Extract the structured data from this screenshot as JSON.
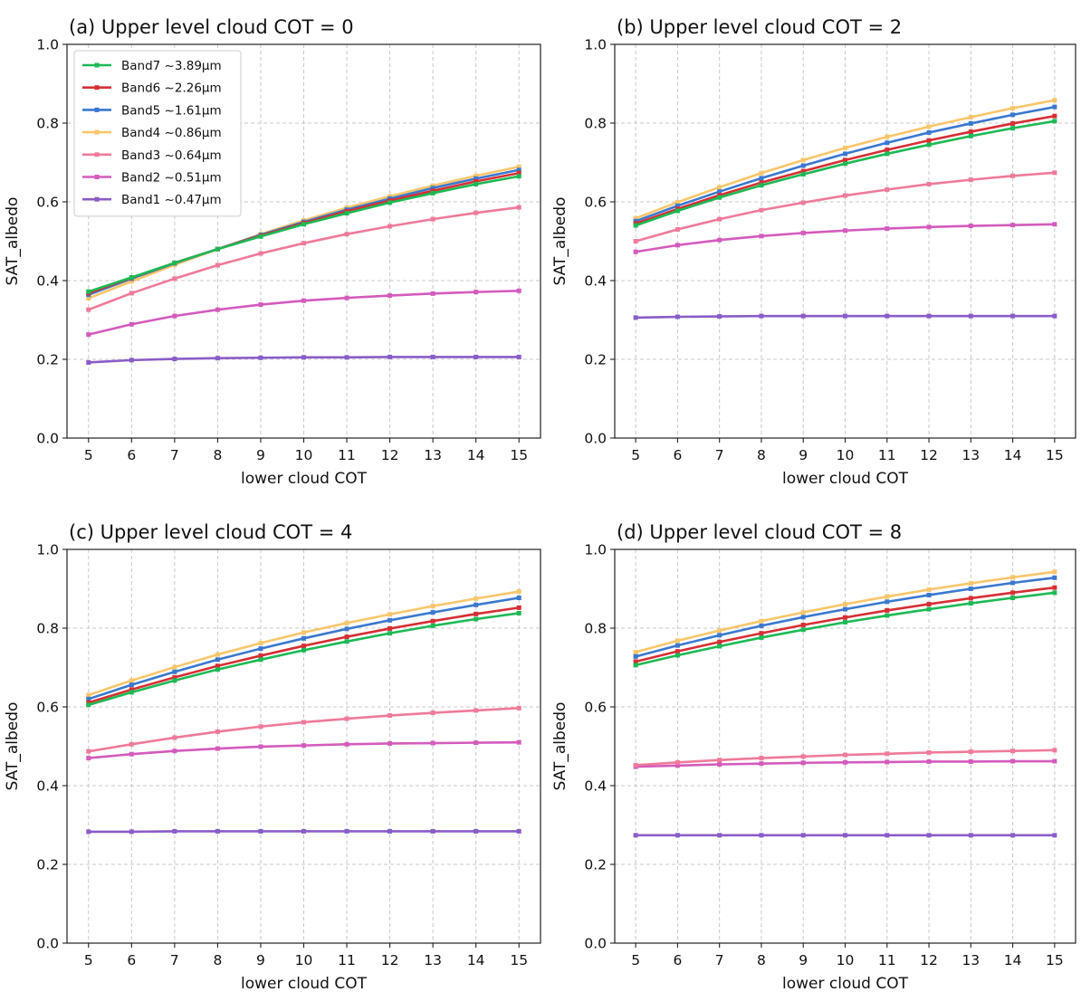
{
  "colors": {
    "band7": "#1db954",
    "band6": "#d62f34",
    "band5": "#3a78cf",
    "band4": "#f8c66a",
    "band3": "#ef7a9a",
    "band2": "#d45bbd",
    "band1": "#8a5cc8"
  },
  "chart_data": [
    {
      "type": "line",
      "title": "(a) Upper level cloud COT = 0",
      "xlabel": "lower cloud COT",
      "ylabel": "SAT_albedo",
      "ylim": [
        0.0,
        1.0
      ],
      "xlim": [
        4.5,
        15.5
      ],
      "yticks": [
        "0.0",
        "0.2",
        "0.4",
        "0.6",
        "0.8",
        "1.0"
      ],
      "xticks": [
        "5",
        "6",
        "7",
        "8",
        "9",
        "10",
        "11",
        "12",
        "13",
        "14",
        "15"
      ],
      "grid": true,
      "legend_position": "top-left",
      "x": [
        5,
        6,
        7,
        8,
        9,
        10,
        11,
        12,
        13,
        14,
        15
      ],
      "series": [
        {
          "name": "Band7 ~3.89μm",
          "color_key": "band7",
          "values": [
            0.372,
            0.408,
            0.445,
            0.48,
            0.512,
            0.543,
            0.571,
            0.598,
            0.622,
            0.645,
            0.665
          ]
        },
        {
          "name": "Band6 ~2.26μm",
          "color_key": "band6",
          "values": [
            0.368,
            0.407,
            0.445,
            0.48,
            0.514,
            0.546,
            0.576,
            0.603,
            0.628,
            0.652,
            0.673
          ]
        },
        {
          "name": "Band5 ~1.61μm",
          "color_key": "band5",
          "values": [
            0.364,
            0.405,
            0.444,
            0.48,
            0.516,
            0.549,
            0.58,
            0.608,
            0.635,
            0.659,
            0.681
          ]
        },
        {
          "name": "Band4 ~0.86μm",
          "color_key": "band4",
          "values": [
            0.355,
            0.398,
            0.44,
            0.48,
            0.518,
            0.553,
            0.585,
            0.614,
            0.641,
            0.666,
            0.689
          ]
        },
        {
          "name": "Band3 ~0.64μm",
          "color_key": "band3",
          "values": [
            0.326,
            0.368,
            0.405,
            0.439,
            0.469,
            0.495,
            0.518,
            0.538,
            0.556,
            0.572,
            0.586
          ]
        },
        {
          "name": "Band2 ~0.51μm",
          "color_key": "band2",
          "values": [
            0.263,
            0.289,
            0.31,
            0.326,
            0.339,
            0.349,
            0.356,
            0.362,
            0.367,
            0.371,
            0.374
          ]
        },
        {
          "name": "Band1 ~0.47μm",
          "color_key": "band1",
          "values": [
            0.192,
            0.198,
            0.201,
            0.203,
            0.204,
            0.205,
            0.205,
            0.206,
            0.206,
            0.206,
            0.206
          ]
        }
      ]
    },
    {
      "type": "line",
      "title": "(b) Upper level cloud COT = 2",
      "xlabel": "lower cloud COT",
      "ylabel": "SAT_albedo",
      "ylim": [
        0.0,
        1.0
      ],
      "xlim": [
        4.5,
        15.5
      ],
      "yticks": [
        "0.0",
        "0.2",
        "0.4",
        "0.6",
        "0.8",
        "1.0"
      ],
      "xticks": [
        "5",
        "6",
        "7",
        "8",
        "9",
        "10",
        "11",
        "12",
        "13",
        "14",
        "15"
      ],
      "grid": true,
      "x": [
        5,
        6,
        7,
        8,
        9,
        10,
        11,
        12,
        13,
        14,
        15
      ],
      "series": [
        {
          "name": "Band7 ~3.89μm",
          "color_key": "band7",
          "values": [
            0.54,
            0.577,
            0.611,
            0.642,
            0.67,
            0.697,
            0.722,
            0.745,
            0.767,
            0.787,
            0.805
          ]
        },
        {
          "name": "Band6 ~2.26μm",
          "color_key": "band6",
          "values": [
            0.545,
            0.582,
            0.617,
            0.649,
            0.678,
            0.706,
            0.732,
            0.756,
            0.778,
            0.799,
            0.818
          ]
        },
        {
          "name": "Band5 ~1.61μm",
          "color_key": "band5",
          "values": [
            0.551,
            0.59,
            0.626,
            0.66,
            0.692,
            0.722,
            0.75,
            0.776,
            0.799,
            0.821,
            0.841
          ]
        },
        {
          "name": "Band4 ~0.86μm",
          "color_key": "band4",
          "values": [
            0.558,
            0.599,
            0.637,
            0.673,
            0.706,
            0.737,
            0.765,
            0.791,
            0.815,
            0.838,
            0.858
          ]
        },
        {
          "name": "Band3 ~0.64μm",
          "color_key": "band3",
          "values": [
            0.5,
            0.53,
            0.556,
            0.579,
            0.598,
            0.616,
            0.631,
            0.645,
            0.656,
            0.666,
            0.674
          ]
        },
        {
          "name": "Band2 ~0.51μm",
          "color_key": "band2",
          "values": [
            0.473,
            0.49,
            0.503,
            0.513,
            0.521,
            0.527,
            0.532,
            0.536,
            0.539,
            0.541,
            0.543
          ]
        },
        {
          "name": "Band1 ~0.47μm",
          "color_key": "band1",
          "values": [
            0.306,
            0.308,
            0.309,
            0.31,
            0.31,
            0.31,
            0.31,
            0.31,
            0.31,
            0.31,
            0.31
          ]
        }
      ]
    },
    {
      "type": "line",
      "title": "(c) Upper level cloud COT = 4",
      "xlabel": "lower cloud COT",
      "ylabel": "SAT_albedo",
      "ylim": [
        0.0,
        1.0
      ],
      "xlim": [
        4.5,
        15.5
      ],
      "yticks": [
        "0.0",
        "0.2",
        "0.4",
        "0.6",
        "0.8",
        "1.0"
      ],
      "xticks": [
        "5",
        "6",
        "7",
        "8",
        "9",
        "10",
        "11",
        "12",
        "13",
        "14",
        "15"
      ],
      "grid": true,
      "x": [
        5,
        6,
        7,
        8,
        9,
        10,
        11,
        12,
        13,
        14,
        15
      ],
      "series": [
        {
          "name": "Band7 ~3.89μm",
          "color_key": "band7",
          "values": [
            0.605,
            0.637,
            0.667,
            0.695,
            0.72,
            0.744,
            0.766,
            0.787,
            0.806,
            0.823,
            0.838
          ]
        },
        {
          "name": "Band6 ~2.26μm",
          "color_key": "band6",
          "values": [
            0.611,
            0.644,
            0.675,
            0.704,
            0.73,
            0.755,
            0.778,
            0.799,
            0.818,
            0.836,
            0.852
          ]
        },
        {
          "name": "Band5 ~1.61μm",
          "color_key": "band5",
          "values": [
            0.62,
            0.656,
            0.689,
            0.72,
            0.748,
            0.774,
            0.798,
            0.82,
            0.84,
            0.859,
            0.877
          ]
        },
        {
          "name": "Band4 ~0.86μm",
          "color_key": "band4",
          "values": [
            0.63,
            0.667,
            0.701,
            0.733,
            0.762,
            0.789,
            0.813,
            0.835,
            0.856,
            0.875,
            0.893
          ]
        },
        {
          "name": "Band3 ~0.64μm",
          "color_key": "band3",
          "values": [
            0.487,
            0.505,
            0.522,
            0.537,
            0.55,
            0.561,
            0.57,
            0.578,
            0.585,
            0.591,
            0.597
          ]
        },
        {
          "name": "Band2 ~0.51μm",
          "color_key": "band2",
          "values": [
            0.47,
            0.48,
            0.488,
            0.494,
            0.499,
            0.502,
            0.505,
            0.507,
            0.508,
            0.509,
            0.51
          ]
        },
        {
          "name": "Band1 ~0.47μm",
          "color_key": "band1",
          "values": [
            0.283,
            0.283,
            0.284,
            0.284,
            0.284,
            0.284,
            0.284,
            0.284,
            0.284,
            0.284,
            0.284
          ]
        }
      ]
    },
    {
      "type": "line",
      "title": "(d) Upper level cloud COT = 8",
      "xlabel": "lower cloud COT",
      "ylabel": "SAT_albedo",
      "ylim": [
        0.0,
        1.0
      ],
      "xlim": [
        4.5,
        15.5
      ],
      "yticks": [
        "0.0",
        "0.2",
        "0.4",
        "0.6",
        "0.8",
        "1.0"
      ],
      "xticks": [
        "5",
        "6",
        "7",
        "8",
        "9",
        "10",
        "11",
        "12",
        "13",
        "14",
        "15"
      ],
      "grid": true,
      "x": [
        5,
        6,
        7,
        8,
        9,
        10,
        11,
        12,
        13,
        14,
        15
      ],
      "series": [
        {
          "name": "Band7 ~3.89μm",
          "color_key": "band7",
          "values": [
            0.706,
            0.731,
            0.754,
            0.776,
            0.796,
            0.815,
            0.832,
            0.848,
            0.863,
            0.877,
            0.89
          ]
        },
        {
          "name": "Band6 ~2.26μm",
          "color_key": "band6",
          "values": [
            0.715,
            0.741,
            0.765,
            0.787,
            0.808,
            0.827,
            0.845,
            0.861,
            0.876,
            0.89,
            0.903
          ]
        },
        {
          "name": "Band5 ~1.61μm",
          "color_key": "band5",
          "values": [
            0.728,
            0.756,
            0.782,
            0.806,
            0.828,
            0.848,
            0.867,
            0.884,
            0.9,
            0.915,
            0.928
          ]
        },
        {
          "name": "Band4 ~0.86μm",
          "color_key": "band4",
          "values": [
            0.739,
            0.768,
            0.794,
            0.818,
            0.84,
            0.861,
            0.88,
            0.898,
            0.914,
            0.929,
            0.943
          ]
        },
        {
          "name": "Band3 ~0.64μm",
          "color_key": "band3",
          "values": [
            0.452,
            0.459,
            0.465,
            0.47,
            0.474,
            0.478,
            0.481,
            0.484,
            0.486,
            0.488,
            0.49
          ]
        },
        {
          "name": "Band2 ~0.51μm",
          "color_key": "band2",
          "values": [
            0.448,
            0.451,
            0.454,
            0.456,
            0.458,
            0.459,
            0.46,
            0.461,
            0.461,
            0.462,
            0.462
          ]
        },
        {
          "name": "Band1 ~0.47μm",
          "color_key": "band1",
          "values": [
            0.274,
            0.274,
            0.274,
            0.274,
            0.274,
            0.274,
            0.274,
            0.274,
            0.274,
            0.274,
            0.274
          ]
        }
      ]
    }
  ]
}
